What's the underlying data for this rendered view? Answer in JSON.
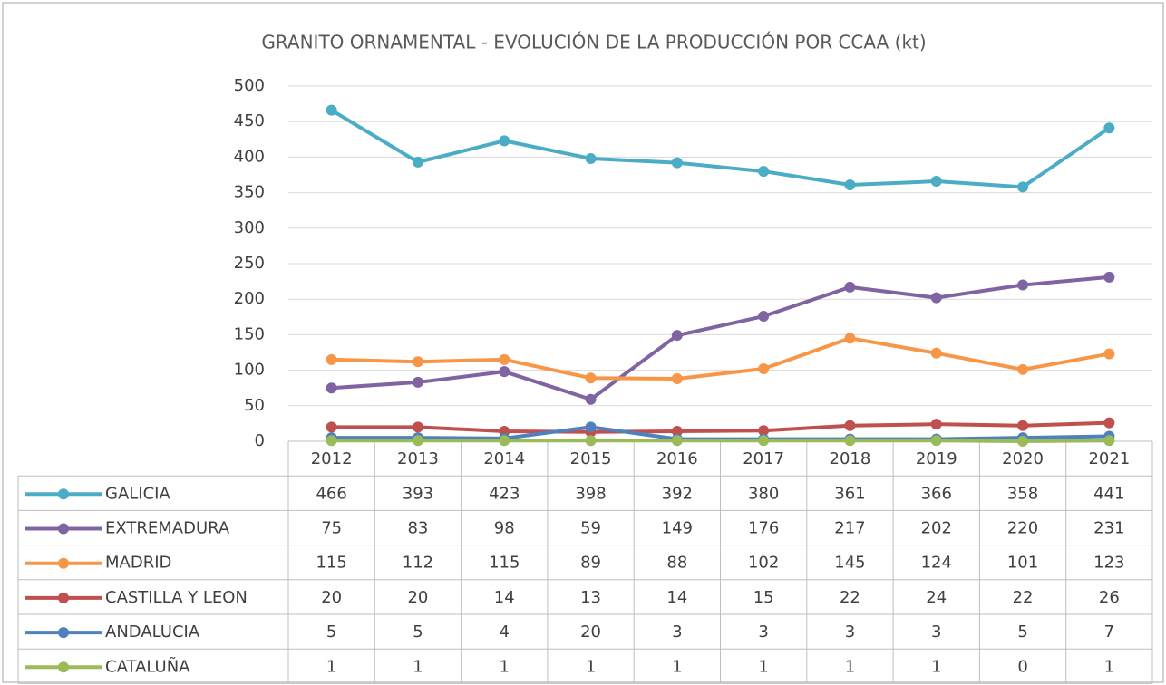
{
  "chart_data": {
    "type": "line",
    "title": "GRANITO ORNAMENTAL - EVOLUCIÓN DE LA PRODUCCIÓN POR CCAA (kt)",
    "categories": [
      "2012",
      "2013",
      "2014",
      "2015",
      "2016",
      "2017",
      "2018",
      "2019",
      "2020",
      "2021"
    ],
    "series": [
      {
        "name": "GALICIA",
        "color": "#4bacc6",
        "values": [
          466,
          393,
          423,
          398,
          392,
          380,
          361,
          366,
          358,
          441
        ]
      },
      {
        "name": "EXTREMADURA",
        "color": "#8064a2",
        "values": [
          75,
          83,
          98,
          59,
          149,
          176,
          217,
          202,
          220,
          231
        ]
      },
      {
        "name": "MADRID",
        "color": "#f79646",
        "values": [
          115,
          112,
          115,
          89,
          88,
          102,
          145,
          124,
          101,
          123
        ]
      },
      {
        "name": "CASTILLA Y LEON",
        "color": "#c0504d",
        "values": [
          20,
          20,
          14,
          13,
          14,
          15,
          22,
          24,
          22,
          26
        ]
      },
      {
        "name": "ANDALUCIA",
        "color": "#4f81bd",
        "values": [
          5,
          5,
          4,
          20,
          3,
          3,
          3,
          3,
          5,
          7
        ]
      },
      {
        "name": "CATALUÑA",
        "color": "#9bbb59",
        "values": [
          1,
          1,
          1,
          1,
          1,
          1,
          1,
          1,
          0,
          1
        ]
      }
    ],
    "ylim": [
      0,
      500
    ],
    "yticks": [
      0,
      50,
      100,
      150,
      200,
      250,
      300,
      350,
      400,
      450,
      500
    ],
    "grid": true
  }
}
